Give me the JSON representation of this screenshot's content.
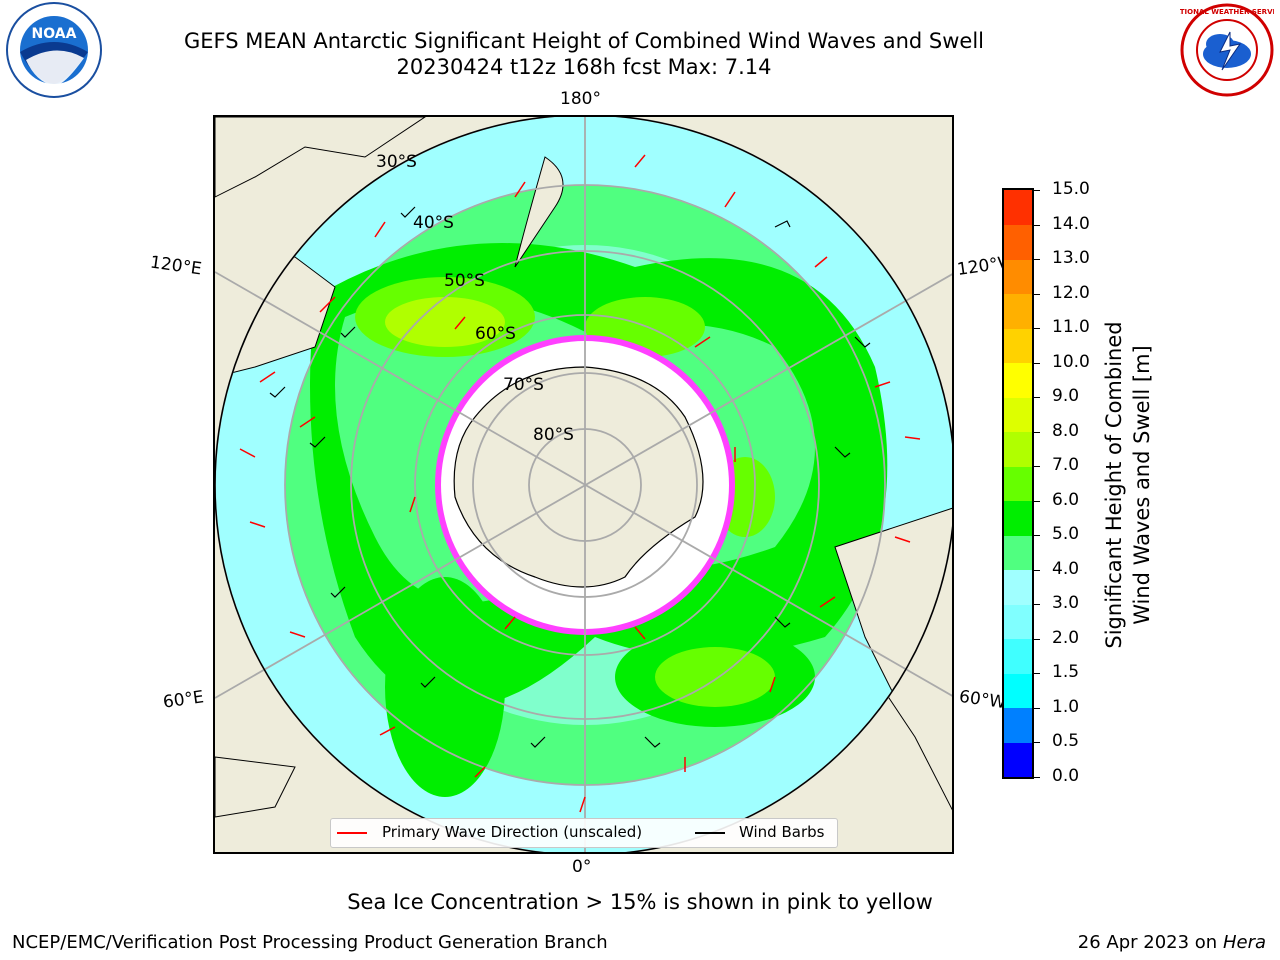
{
  "header": {
    "title_line1": "GEFS MEAN Antarctic Significant Height of Combined Wind Waves and Swell",
    "title_line2": "20230424 t12z 168h fcst   Max: 7.14"
  },
  "map": {
    "lon_labels": {
      "top": "180°",
      "bottom": "0°",
      "upper_left": "120°E",
      "upper_right": "120°W",
      "lower_left": "60°E",
      "lower_right": "60°W"
    },
    "lat_labels": [
      "30°S",
      "40°S",
      "50°S",
      "60°S",
      "70°S",
      "80°S"
    ],
    "legend": {
      "wave_label": "Primary Wave Direction (unscaled)",
      "barb_label": "Wind Barbs",
      "wave_color": "#ff0000",
      "barb_color": "#000000"
    },
    "land_color": "#eeecdb"
  },
  "colorbar": {
    "label_line1": "Significant Height of Combined",
    "label_line2": "Wind Waves and Swell [m]",
    "ticks": [
      "0.0",
      "0.5",
      "1.0",
      "1.5",
      "2.0",
      "3.0",
      "4.0",
      "5.0",
      "6.0",
      "7.0",
      "8.0",
      "9.0",
      "10.0",
      "11.0",
      "12.0",
      "13.0",
      "14.0",
      "15.0"
    ],
    "colors": [
      "#0000ff",
      "#0080ff",
      "#00ffff",
      "#40ffff",
      "#80ffff",
      "#a0ffff",
      "#50ff80",
      "#00ee00",
      "#66ff00",
      "#b0ff00",
      "#ddff00",
      "#ffff00",
      "#ffd200",
      "#ffb000",
      "#ff8c00",
      "#ff6000",
      "#ff3000"
    ]
  },
  "footer": {
    "note": "Sea Ice Concentration > 15% is shown in pink to yellow",
    "left": "NCEP/EMC/Verification Post Processing Product Generation Branch",
    "right_date": "26 Apr 2023 on ",
    "right_host": "Hera"
  },
  "logos": {
    "left": "NOAA",
    "right": "NATIONAL WEATHER SERVICE"
  }
}
